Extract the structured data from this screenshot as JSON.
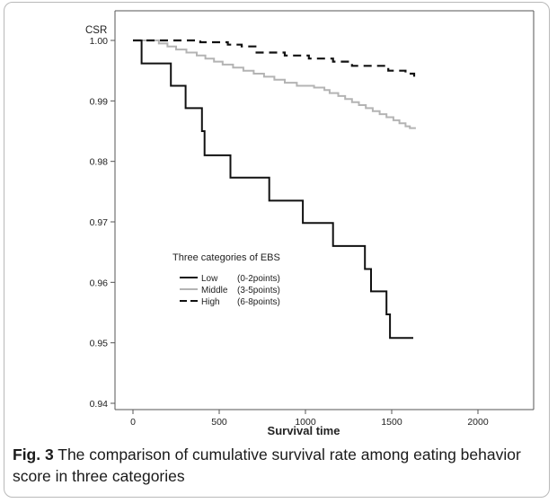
{
  "chart_data": {
    "type": "line",
    "step": true,
    "ylabel": "CSR",
    "xlabel": "Survival time",
    "xlim": [
      0,
      2000
    ],
    "ylim": [
      0.94,
      1.0
    ],
    "xticks": [
      "0",
      "500",
      "1000",
      "1500",
      "2000"
    ],
    "yticks": [
      "0.94",
      "0.95",
      "0.96",
      "0.97",
      "0.98",
      "0.99",
      "1.00"
    ],
    "grid": false,
    "legend": {
      "title": "Three categories of EBS",
      "placement": "center-left",
      "entries": [
        {
          "name": "Low",
          "detail": "(0-2points)",
          "style": "solid",
          "color": "#111111"
        },
        {
          "name": "Middle",
          "detail": "(3-5points)",
          "style": "solid",
          "color": "#b4b4b4"
        },
        {
          "name": "High",
          "detail": "(6-8points)",
          "style": "dashed",
          "color": "#111111"
        }
      ]
    },
    "series": [
      {
        "name": "Low",
        "color": "#111111",
        "style": "solid",
        "x": [
          0,
          50,
          120,
          220,
          305,
          400,
          415,
          565,
          790,
          985,
          1160,
          1345,
          1380,
          1470,
          1490,
          1500,
          1625
        ],
        "y": [
          1.0,
          0.9962,
          0.9962,
          0.9925,
          0.9888,
          0.985,
          0.981,
          0.9773,
          0.9735,
          0.9698,
          0.966,
          0.9622,
          0.9585,
          0.9547,
          0.9508,
          0.9508,
          0.9508
        ]
      },
      {
        "name": "Middle",
        "color": "#b4b4b4",
        "style": "solid",
        "x": [
          0,
          100,
          150,
          200,
          250,
          310,
          370,
          420,
          470,
          520,
          580,
          640,
          700,
          760,
          820,
          880,
          950,
          1050,
          1110,
          1140,
          1190,
          1230,
          1270,
          1310,
          1350,
          1390,
          1430,
          1470,
          1510,
          1545,
          1580,
          1605,
          1640
        ],
        "y": [
          1.0,
          1.0,
          0.9995,
          0.999,
          0.9985,
          0.998,
          0.9975,
          0.997,
          0.9965,
          0.996,
          0.9955,
          0.995,
          0.9945,
          0.994,
          0.9935,
          0.993,
          0.9925,
          0.9922,
          0.9918,
          0.9913,
          0.9908,
          0.9903,
          0.9898,
          0.9893,
          0.9888,
          0.9883,
          0.9878,
          0.9873,
          0.9868,
          0.9863,
          0.9858,
          0.9855,
          0.9855
        ]
      },
      {
        "name": "High",
        "color": "#111111",
        "style": "dashed",
        "x": [
          0,
          390,
          550,
          630,
          710,
          880,
          1020,
          1160,
          1270,
          1480,
          1580,
          1630
        ],
        "y": [
          1.0,
          0.9997,
          0.9993,
          0.999,
          0.998,
          0.9975,
          0.997,
          0.9965,
          0.9958,
          0.995,
          0.9945,
          0.994
        ]
      }
    ]
  },
  "caption": {
    "label": "Fig. 3",
    "text": " The comparison of cumulative survival rate among eating behavior score in three categories"
  }
}
